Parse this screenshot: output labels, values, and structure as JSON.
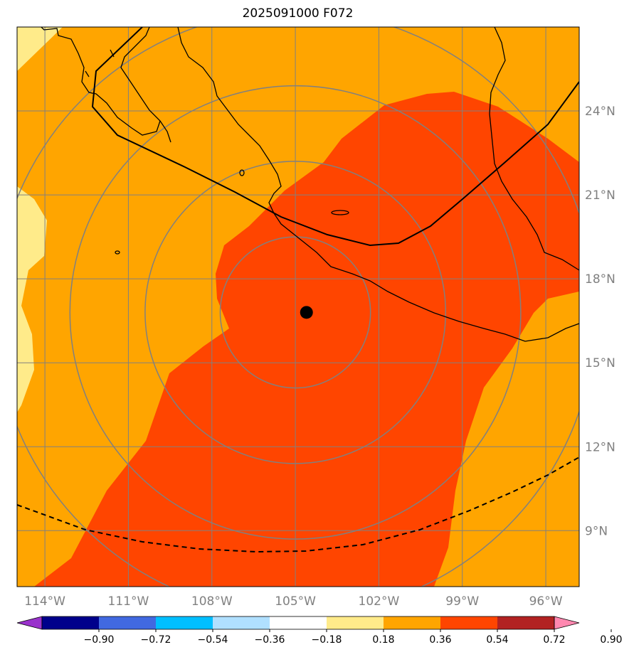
{
  "title": "2025091000 F072",
  "map": {
    "lon_range": [
      -115,
      -94.8
    ],
    "lat_range": [
      7,
      27
    ],
    "lon_ticks": [
      {
        "value": -114,
        "label": "114°W"
      },
      {
        "value": -111,
        "label": "111°W"
      },
      {
        "value": -108,
        "label": "108°W"
      },
      {
        "value": -105,
        "label": "105°W"
      },
      {
        "value": -102,
        "label": "102°W"
      },
      {
        "value": -99,
        "label": "99°W"
      },
      {
        "value": -96,
        "label": "96°W"
      }
    ],
    "lat_ticks": [
      {
        "value": 24,
        "label": "24°N"
      },
      {
        "value": 21,
        "label": "21°N"
      },
      {
        "value": 18,
        "label": "18°N"
      },
      {
        "value": 15,
        "label": "15°N"
      },
      {
        "value": 12,
        "label": "12°N"
      },
      {
        "value": 9,
        "label": "9°N"
      }
    ],
    "storm_center": {
      "lon": -104.6,
      "lat": 16.8
    },
    "range_rings_deg": [
      2.7,
      5.4,
      8.1,
      10.8
    ],
    "ring_center": {
      "lon": -105,
      "lat": 16.8
    },
    "gridlines": true,
    "colors": {
      "ocean_base": "#ffa500",
      "light_band": "#ffeb8a",
      "core": "#ff4500",
      "ring": "#808080",
      "grid": "#808080",
      "coast": "#000000"
    }
  },
  "colorbar": {
    "levels": [
      "−0.90",
      "−0.72",
      "−0.54",
      "−0.36",
      "−0.18",
      "0.18",
      "0.36",
      "0.54",
      "0.72",
      "0.90"
    ],
    "colors": [
      "#9932cc",
      "#00008b",
      "#4169e1",
      "#00bfff",
      "#b0e0ff",
      "#ffffff",
      "#ffeb8a",
      "#ffa500",
      "#ff4500",
      "#b22222",
      "#ff88b0"
    ]
  }
}
